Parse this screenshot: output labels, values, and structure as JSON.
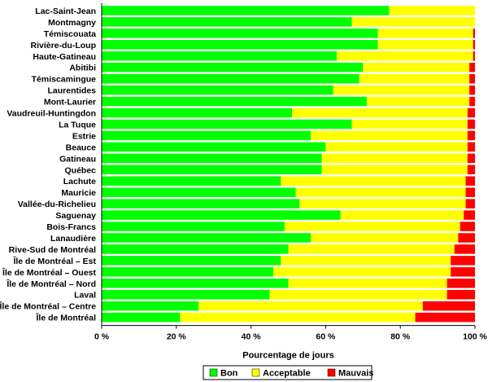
{
  "chart_data": {
    "type": "bar",
    "orientation": "horizontal",
    "stacked": true,
    "categories": [
      "Lac-Saint-Jean",
      "Montmagny",
      "Témiscouata",
      "Rivière-du-Loup",
      "Haute-Gatineau",
      "Abitibi",
      "Témiscamingue",
      "Laurentides",
      "Mont-Laurier",
      "Vaudreuil-Huntingdon",
      "La Tuque",
      "Estrie",
      "Beauce",
      "Gatineau",
      "Québec",
      "Lachute",
      "Mauricie",
      "Vallée-du-Richelieu",
      "Saguenay",
      "Bois-Francs",
      "Lanaudière",
      "Rive-Sud de Montréal",
      "Île de Montréal – Est",
      "Île de Montréal – Ouest",
      "Île de Montréal – Nord",
      "Laval",
      "Île de Montréal – Centre",
      "Île de Montréal"
    ],
    "series": [
      {
        "name": "Bon",
        "color": "#00ff00",
        "values": [
          77,
          67,
          74,
          74,
          63,
          70,
          69,
          62,
          71,
          51,
          67,
          56,
          60,
          59,
          59,
          48,
          52,
          53,
          64,
          49,
          56,
          50,
          48,
          46,
          50,
          45,
          26,
          21
        ]
      },
      {
        "name": "Acceptable",
        "color": "#ffff00",
        "values": [
          23,
          33,
          25.5,
          25.5,
          36.5,
          28.5,
          29.5,
          36.5,
          27.5,
          47,
          31,
          42,
          38,
          39,
          39,
          49.5,
          45.5,
          44.5,
          33,
          47,
          39.5,
          44.5,
          45.5,
          47.5,
          42.5,
          47.5,
          60,
          63
        ]
      },
      {
        "name": "Mauvais",
        "color": "#ff0000",
        "values": [
          0,
          0,
          0.5,
          0.5,
          0.5,
          1.5,
          1.5,
          1.5,
          1.5,
          2,
          2,
          2,
          2,
          2,
          2,
          2.5,
          2.5,
          2.5,
          3,
          4,
          4.5,
          5.5,
          6.5,
          6.5,
          7.5,
          7.5,
          14,
          16
        ]
      }
    ],
    "xlabel": "Pourcentage de jours",
    "ylabel": "",
    "xlim": [
      0,
      100
    ],
    "xticks": [
      "0 %",
      "20 %",
      "40 %",
      "60 %",
      "80 %",
      "100 %"
    ],
    "grid": false,
    "legend": {
      "position": "bottom",
      "entries": [
        "Bon",
        "Acceptable",
        "Mauvais"
      ]
    }
  }
}
